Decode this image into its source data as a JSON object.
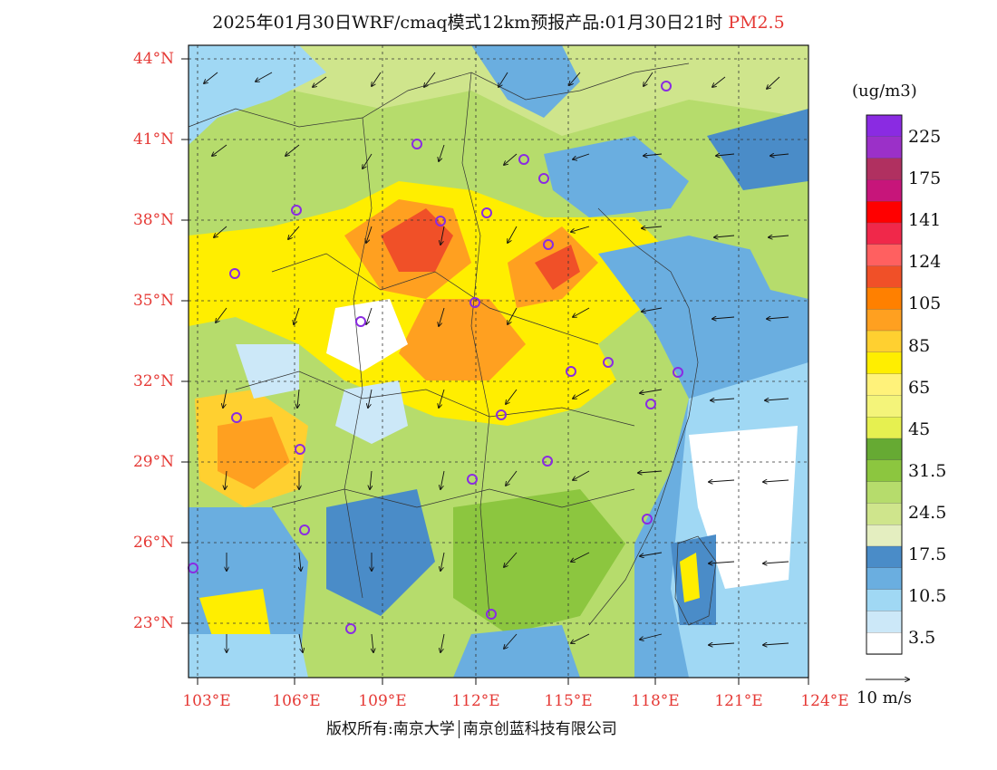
{
  "title": {
    "main": "2025年01月30日WRF/cmaq模式12km预报产品:01月30日21时",
    "pollutant": "PM2.5"
  },
  "map": {
    "lat_labels": [
      "44°N",
      "41°N",
      "38°N",
      "35°N",
      "32°N",
      "29°N",
      "26°N",
      "23°N"
    ],
    "lon_labels": [
      "103°E",
      "106°E",
      "109°E",
      "112°E",
      "115°E",
      "118°E",
      "121°E",
      "124°E"
    ],
    "lat_values": [
      44,
      41,
      38,
      35,
      32,
      29,
      26,
      23
    ],
    "lon_values": [
      103,
      106,
      109,
      112,
      115,
      118,
      121,
      124
    ]
  },
  "colorbar": {
    "unit": "(ug/m3)",
    "labels": [
      "225",
      "175",
      "141",
      "124",
      "105",
      "85",
      "65",
      "45",
      "31.5",
      "24.5",
      "17.5",
      "10.5",
      "3.5"
    ],
    "colors": [
      "#8a2be2",
      "#9b30c8",
      "#b03060",
      "#c7157a",
      "#ff0000",
      "#f0284a",
      "#ff6060",
      "#f05028",
      "#ff8000",
      "#ffa020",
      "#ffd030",
      "#ffee00",
      "#fff27a",
      "#f4f47a",
      "#e6f050",
      "#66aa33",
      "#8cc63f",
      "#b6dc6c",
      "#cfe58c",
      "#e4eec0",
      "#4a8cc8",
      "#6aaee0",
      "#a0d8f4",
      "#cce8f8",
      "#ffffff"
    ]
  },
  "wind_scale": {
    "label": "10 m/s"
  },
  "footer": {
    "copyright": "版权所有:南京大学",
    "company": "南京创蓝科技有限公司"
  }
}
